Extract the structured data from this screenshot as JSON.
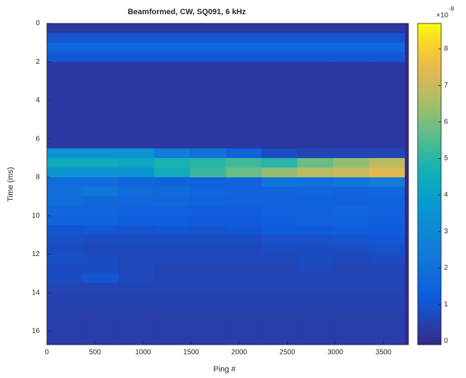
{
  "chart_data": {
    "type": "heatmap",
    "title": "Beamformed, CW, SQ091, 6 kHz",
    "xlabel": "Ping #",
    "ylabel": "Time (ms)",
    "xlim": [
      0,
      3760
    ],
    "ylim": [
      0,
      16.7
    ],
    "y_reversed": true,
    "xticks": [
      0,
      500,
      1000,
      1500,
      2000,
      2500,
      3000,
      3500
    ],
    "yticks": [
      0,
      2,
      4,
      6,
      8,
      10,
      12,
      14,
      16
    ],
    "x_edges": [
      0,
      372,
      744,
      1116,
      1488,
      1860,
      2232,
      2604,
      2976,
      3348,
      3720
    ],
    "y_edges": [
      0,
      0.5,
      1,
      1.5,
      2,
      2.5,
      3,
      3.5,
      4,
      4.5,
      5,
      5.5,
      6,
      6.5,
      7,
      7.5,
      8,
      8.5,
      9,
      9.5,
      10,
      10.5,
      11,
      11.5,
      12,
      12.5,
      13,
      13.5,
      14,
      14.5,
      15,
      15.5,
      16,
      16.5,
      16.7
    ],
    "z": [
      [
        0.3,
        0.3,
        0.3,
        0.3,
        0.3,
        0.3,
        0.3,
        0.3,
        0.3,
        0.3
      ],
      [
        1.0,
        1.0,
        1.0,
        1.0,
        1.0,
        1.0,
        1.0,
        1.0,
        1.0,
        1.0
      ],
      [
        1.6,
        1.6,
        1.6,
        1.6,
        1.6,
        1.6,
        1.6,
        1.6,
        1.6,
        1.6
      ],
      [
        1.1,
        1.1,
        1.1,
        1.1,
        1.1,
        1.1,
        1.1,
        1.1,
        1.1,
        1.1
      ],
      [
        0.3,
        0.3,
        0.3,
        0.3,
        0.3,
        0.3,
        0.3,
        0.3,
        0.3,
        0.3
      ],
      [
        0.3,
        0.3,
        0.3,
        0.3,
        0.3,
        0.3,
        0.3,
        0.3,
        0.3,
        0.3
      ],
      [
        0.3,
        0.3,
        0.3,
        0.3,
        0.3,
        0.3,
        0.3,
        0.3,
        0.3,
        0.3
      ],
      [
        0.3,
        0.3,
        0.3,
        0.3,
        0.3,
        0.3,
        0.3,
        0.3,
        0.3,
        0.3
      ],
      [
        0.3,
        0.3,
        0.3,
        0.3,
        0.3,
        0.3,
        0.3,
        0.3,
        0.3,
        0.3
      ],
      [
        0.3,
        0.3,
        0.3,
        0.3,
        0.3,
        0.3,
        0.3,
        0.3,
        0.3,
        0.3
      ],
      [
        0.3,
        0.3,
        0.3,
        0.3,
        0.3,
        0.3,
        0.3,
        0.3,
        0.3,
        0.3
      ],
      [
        0.3,
        0.3,
        0.3,
        0.3,
        0.3,
        0.3,
        0.3,
        0.3,
        0.3,
        0.3
      ],
      [
        0.3,
        0.3,
        0.3,
        0.3,
        0.3,
        0.3,
        0.3,
        0.3,
        0.3,
        0.3
      ],
      [
        3.5,
        3.5,
        3.5,
        2.5,
        2.0,
        1.5,
        0.8,
        0.6,
        0.6,
        0.6
      ],
      [
        4.5,
        4.5,
        4.3,
        4.8,
        5.0,
        5.3,
        5.0,
        5.8,
        6.3,
        6.8
      ],
      [
        3.5,
        3.5,
        3.5,
        4.5,
        5.2,
        5.8,
        6.3,
        6.8,
        7.0,
        7.4
      ],
      [
        1.8,
        1.8,
        1.6,
        1.5,
        1.4,
        1.5,
        2.2,
        2.0,
        2.2,
        2.5
      ],
      [
        2.0,
        2.2,
        1.8,
        1.8,
        1.6,
        1.5,
        1.5,
        1.6,
        1.5,
        1.6
      ],
      [
        1.8,
        1.7,
        1.6,
        1.6,
        1.5,
        1.4,
        1.5,
        1.4,
        1.4,
        1.5
      ],
      [
        1.6,
        1.6,
        1.5,
        1.4,
        1.3,
        1.3,
        1.4,
        1.5,
        1.6,
        1.4
      ],
      [
        1.4,
        1.4,
        1.3,
        1.3,
        1.2,
        1.2,
        1.3,
        1.4,
        1.5,
        1.3
      ],
      [
        1.0,
        1.1,
        1.0,
        1.1,
        1.0,
        1.1,
        1.2,
        1.2,
        1.3,
        1.2
      ],
      [
        0.9,
        0.8,
        0.8,
        0.8,
        0.8,
        0.8,
        0.9,
        0.9,
        1.0,
        1.1
      ],
      [
        0.8,
        0.7,
        0.7,
        0.7,
        0.7,
        0.7,
        0.8,
        0.8,
        0.8,
        0.9
      ],
      [
        0.9,
        0.8,
        0.7,
        0.7,
        0.7,
        0.7,
        0.7,
        0.8,
        0.7,
        0.8
      ],
      [
        0.8,
        0.8,
        0.7,
        0.6,
        0.6,
        0.6,
        0.6,
        0.7,
        0.6,
        0.6
      ],
      [
        0.8,
        1.0,
        0.7,
        0.6,
        0.6,
        0.6,
        0.6,
        0.6,
        0.6,
        0.6
      ],
      [
        0.6,
        0.6,
        0.6,
        0.6,
        0.6,
        0.6,
        0.6,
        0.6,
        0.6,
        0.6
      ],
      [
        0.5,
        0.5,
        0.5,
        0.5,
        0.5,
        0.5,
        0.5,
        0.5,
        0.5,
        0.5
      ],
      [
        0.5,
        0.5,
        0.5,
        0.5,
        0.5,
        0.5,
        0.5,
        0.5,
        0.5,
        0.5
      ],
      [
        0.4,
        0.4,
        0.4,
        0.4,
        0.4,
        0.4,
        0.4,
        0.4,
        0.4,
        0.4
      ],
      [
        0.4,
        0.4,
        0.4,
        0.4,
        0.4,
        0.4,
        0.4,
        0.4,
        0.4,
        0.4
      ],
      [
        0.4,
        0.4,
        0.4,
        0.4,
        0.4,
        0.4,
        0.4,
        0.4,
        0.4,
        0.4
      ],
      [
        0.4,
        0.4,
        0.4,
        0.4,
        0.4,
        0.4,
        0.4,
        0.4,
        0.4,
        0.4
      ]
    ],
    "colormap": "parula",
    "clim": [
      -0.1,
      8.7
    ],
    "colorbar_ticks": [
      0,
      1,
      2,
      3,
      4,
      5,
      6,
      7,
      8
    ],
    "colorbar_scale": {
      "base": "×10",
      "exponent": "-8"
    }
  }
}
